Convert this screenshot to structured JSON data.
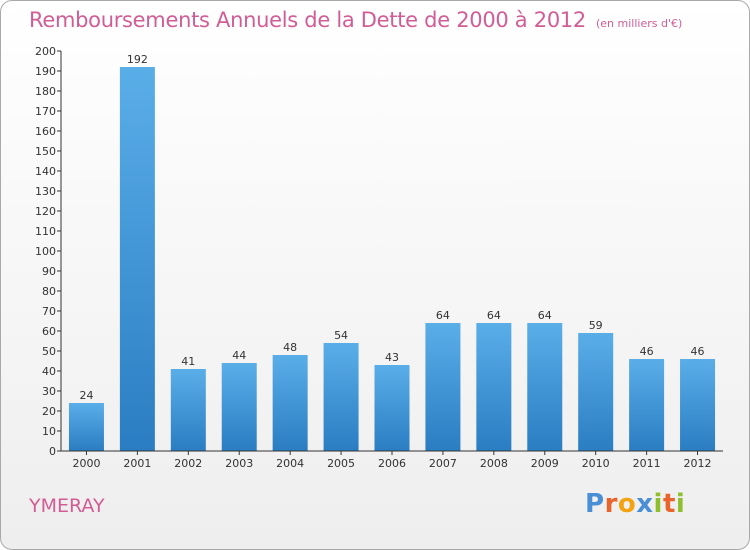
{
  "chart_data": {
    "type": "bar",
    "title": "Remboursements Annuels de la Dette de 2000 à 2012",
    "unit_label": "(en milliers d'€)",
    "categories": [
      "2000",
      "2001",
      "2002",
      "2003",
      "2004",
      "2005",
      "2006",
      "2007",
      "2008",
      "2009",
      "2010",
      "2011",
      "2012"
    ],
    "values": [
      24,
      192,
      41,
      44,
      48,
      54,
      43,
      64,
      64,
      64,
      59,
      46,
      46
    ],
    "ylim": [
      0,
      200
    ],
    "ytick_step": 10,
    "grid": false,
    "bar_color_light": "#5aaee8",
    "bar_color_dark": "#2a7dc2"
  },
  "footer": {
    "city": "YMERAY",
    "logo": [
      "P",
      "r",
      "o",
      "x",
      "i",
      "t",
      "i"
    ],
    "logo_colors": [
      "#4a8fd6",
      "#e8642a",
      "#f2a313",
      "#4a8fd6",
      "#8fbf2e",
      "#e8642a",
      "#8fbf2e"
    ]
  },
  "colors": {
    "accent": "#d25d95"
  }
}
